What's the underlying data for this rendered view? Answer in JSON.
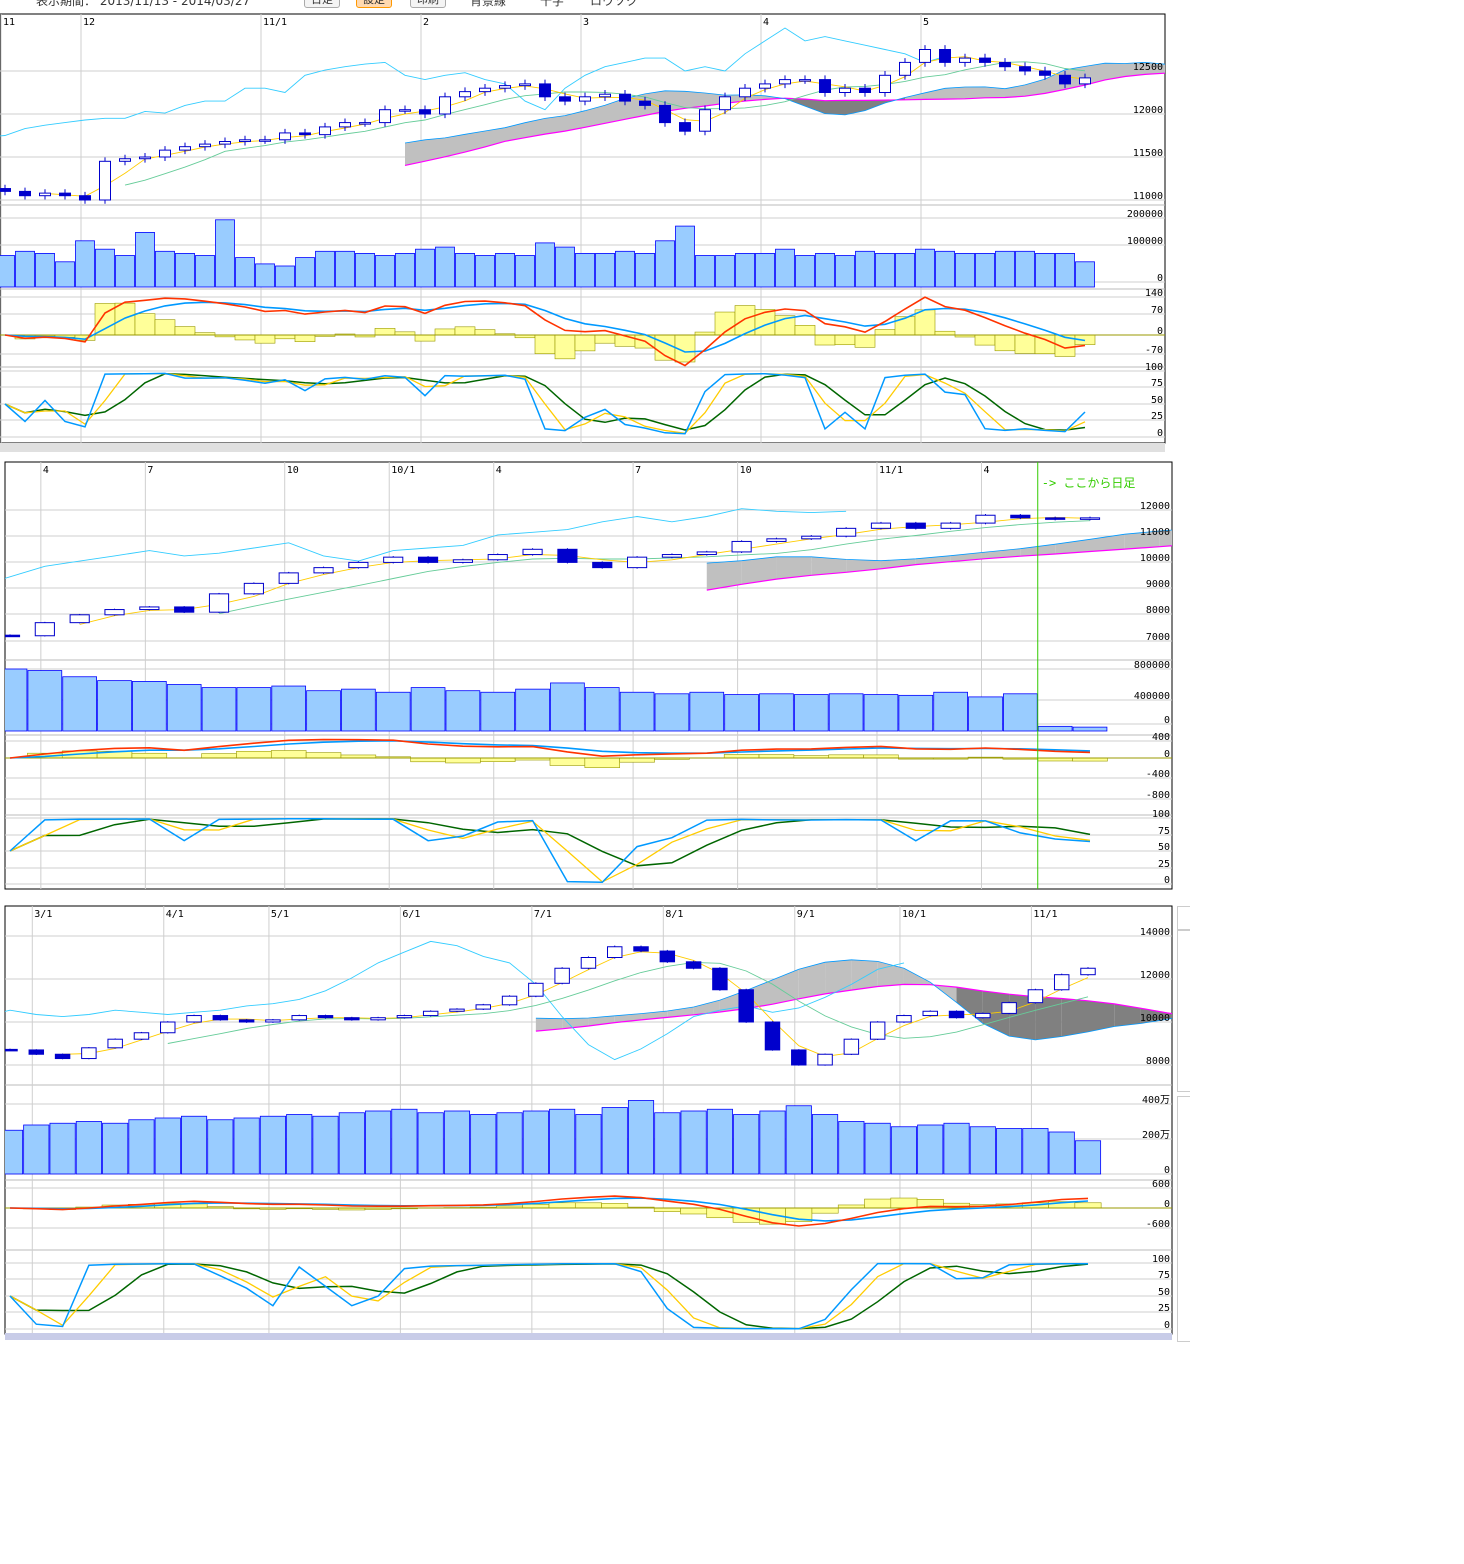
{
  "toolbar": {
    "period": "表示期間： 2013/11/13 - 2014/03/27",
    "interval": "日足",
    "settings": "設定",
    "print": "印刷",
    "opt1": "背景線",
    "opt2": "十字",
    "opt3": "ロウソク"
  },
  "colors": {
    "candle": "#0000cc",
    "volume_fill": "#99ccff",
    "volume_edge": "#0000ff",
    "cloud": "#c0c0c0",
    "cloud_inverted": "#808080",
    "senkou_b": "#ff00ff",
    "senkou_a": "#0099ff",
    "chikou": "#33ccff",
    "tenkan": "#ffcc00",
    "kijun": "#66cc99",
    "macd": "#ff3300",
    "signal": "#0099ff",
    "hist": "#ffff99",
    "stoch_k": "#0099ff",
    "stoch_d": "#ffcc00",
    "stoch_slow": "#006600",
    "daily_marker": "#33cc00"
  },
  "charts": [
    {
      "id": "p1",
      "x_ticks": [
        {
          "label": "11",
          "i": 0
        },
        {
          "label": "12",
          "i": 4
        },
        {
          "label": "11/1",
          "i": 13
        },
        {
          "label": "2",
          "i": 21
        },
        {
          "label": "3",
          "i": 29
        },
        {
          "label": "4",
          "i": 38
        },
        {
          "label": "5",
          "i": 46
        }
      ],
      "price_ticks": [
        "12500",
        "12000",
        "11500",
        "11000"
      ],
      "volume_ticks": [
        "200000",
        "100000",
        "0"
      ],
      "macd_ticks": [
        "140",
        "70",
        "0",
        "-70"
      ],
      "stoch_ticks": [
        "100",
        "75",
        "50",
        "25",
        "0"
      ],
      "close": [
        11100,
        11050,
        11080,
        11050,
        11000,
        11450,
        11480,
        11500,
        11580,
        11620,
        11650,
        11680,
        11700,
        11700,
        11780,
        11760,
        11850,
        11900,
        11900,
        12050,
        12050,
        12000,
        12200,
        12260,
        12300,
        12330,
        12350,
        12200,
        12150,
        12200,
        12230,
        12150,
        12100,
        11900,
        11800,
        12050,
        12200,
        12300,
        12350,
        12400,
        12400,
        12250,
        12300,
        12250,
        12450,
        12600,
        12750,
        12600,
        12650,
        12600,
        12550,
        12500,
        12450,
        12350,
        12420
      ],
      "volume": [
        75000,
        85000,
        80000,
        60000,
        110000,
        90000,
        75000,
        130000,
        85000,
        80000,
        75000,
        160000,
        70000,
        55000,
        50000,
        70000,
        85000,
        85000,
        80000,
        75000,
        80000,
        90000,
        95000,
        80000,
        75000,
        80000,
        75000,
        105000,
        95000,
        80000,
        80000,
        85000,
        80000,
        110000,
        145000,
        75000,
        75000,
        80000,
        80000,
        90000,
        75000,
        80000,
        75000,
        85000,
        80000,
        80000,
        90000,
        85000,
        80000,
        80000,
        85000,
        85000,
        80000,
        80000,
        60000
      ]
    },
    {
      "id": "p2",
      "x_ticks": [
        {
          "label": "4",
          "i": 1
        },
        {
          "label": "7",
          "i": 4
        },
        {
          "label": "10",
          "i": 8
        },
        {
          "label": "10/1",
          "i": 11
        },
        {
          "label": "4",
          "i": 14
        },
        {
          "label": "7",
          "i": 18
        },
        {
          "label": "10",
          "i": 21
        },
        {
          "label": "11/1",
          "i": 25
        },
        {
          "label": "4",
          "i": 28
        }
      ],
      "price_ticks": [
        "12000",
        "11000",
        "10000",
        "9000",
        "8000",
        "7000"
      ],
      "volume_ticks": [
        "800000",
        "400000",
        "0"
      ],
      "macd_ticks": [
        "400",
        "0",
        "-400",
        "-800"
      ],
      "stoch_ticks": [
        "100",
        "75",
        "50",
        "25",
        "0"
      ],
      "daily_marker": {
        "label": "-> ここから日足",
        "from_index": 30
      },
      "close": [
        7200,
        7700,
        8000,
        8200,
        8300,
        8100,
        8800,
        9200,
        9600,
        9800,
        10000,
        10200,
        10000,
        10100,
        10300,
        10500,
        10000,
        9800,
        10200,
        10300,
        10400,
        10800,
        10900,
        11000,
        11300,
        11500,
        11300,
        11500,
        11800,
        11700,
        11650,
        11700
      ],
      "volume": [
        800000,
        780000,
        700000,
        650000,
        640000,
        600000,
        560000,
        560000,
        580000,
        520000,
        540000,
        500000,
        560000,
        520000,
        500000,
        540000,
        620000,
        560000,
        500000,
        480000,
        500000,
        470000,
        480000,
        470000,
        480000,
        470000,
        460000,
        500000,
        440000,
        480000,
        60000,
        50000
      ]
    },
    {
      "id": "p3",
      "x_ticks": [
        {
          "label": "3/1",
          "i": 1
        },
        {
          "label": "4/1",
          "i": 6
        },
        {
          "label": "5/1",
          "i": 10
        },
        {
          "label": "6/1",
          "i": 15
        },
        {
          "label": "7/1",
          "i": 20
        },
        {
          "label": "8/1",
          "i": 25
        },
        {
          "label": "9/1",
          "i": 30
        },
        {
          "label": "10/1",
          "i": 34
        },
        {
          "label": "11/1",
          "i": 39
        }
      ],
      "price_ticks": [
        "14000",
        "12000",
        "10000",
        "8000"
      ],
      "volume_ticks": [
        "400万",
        "200万",
        "0"
      ],
      "macd_ticks": [
        "600",
        "0",
        "-600"
      ],
      "stoch_ticks": [
        "100",
        "75",
        "50",
        "25",
        "0"
      ],
      "close": [
        8700,
        8500,
        8300,
        8800,
        9200,
        9500,
        10000,
        10300,
        10100,
        10000,
        10100,
        10300,
        10200,
        10100,
        10200,
        10300,
        10500,
        10600,
        10800,
        11200,
        11800,
        12500,
        13000,
        13500,
        13300,
        12800,
        12500,
        11500,
        10000,
        8700,
        8000,
        8500,
        9200,
        10000,
        10300,
        10500,
        10200,
        10400,
        10900,
        11500,
        12200,
        12500
      ],
      "volume": [
        2500000,
        2800000,
        2900000,
        3000000,
        2900000,
        3100000,
        3200000,
        3300000,
        3100000,
        3200000,
        3300000,
        3400000,
        3300000,
        3500000,
        3600000,
        3700000,
        3500000,
        3600000,
        3400000,
        3500000,
        3600000,
        3700000,
        3400000,
        3800000,
        4200000,
        3500000,
        3600000,
        3700000,
        3400000,
        3600000,
        3900000,
        3400000,
        3000000,
        2900000,
        2700000,
        2800000,
        2900000,
        2700000,
        2600000,
        2600000,
        2400000,
        1900000
      ]
    }
  ]
}
